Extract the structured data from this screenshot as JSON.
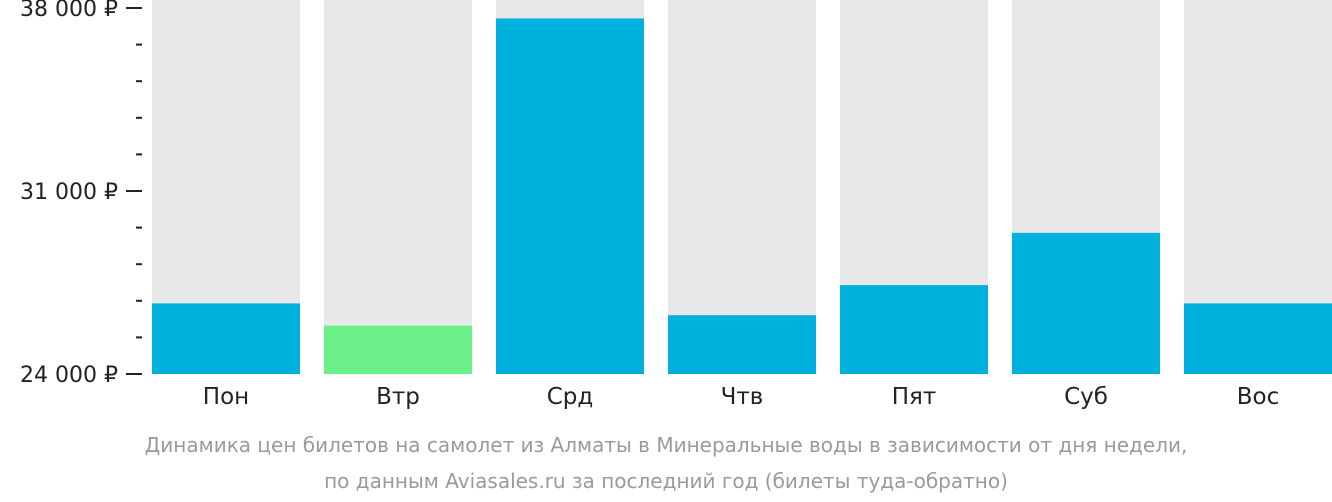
{
  "chart_data": {
    "type": "bar",
    "categories": [
      "Пон",
      "Втр",
      "Срд",
      "Чтв",
      "Пят",
      "Суб",
      "Вос"
    ],
    "values": [
      26700,
      25850,
      37600,
      26250,
      27400,
      29400,
      26700
    ],
    "ylim": [
      24000,
      38000
    ],
    "y_ticks": [
      {
        "value": 38000,
        "label": "38 000 ₽"
      },
      {
        "value": 31000,
        "label": "31 000 ₽"
      },
      {
        "value": 24000,
        "label": "24 000 ₽"
      }
    ],
    "minor_tick_step": 1400,
    "grid": false,
    "legend": "none",
    "caption": [
      "Динамика цен билетов на самолет из Алматы в Минеральные воды в зависимости от дня недели,",
      "по данным Aviasales.ru за последний год (билеты туда-обратно)"
    ],
    "colors": {
      "bar": "#00b0dd",
      "bar_min": "#6cf08a",
      "bar_background": "#e8e8e8",
      "axis": "#222222",
      "label": "#222222",
      "caption": "#9a9a9a"
    },
    "highlight_category": "Втр"
  }
}
